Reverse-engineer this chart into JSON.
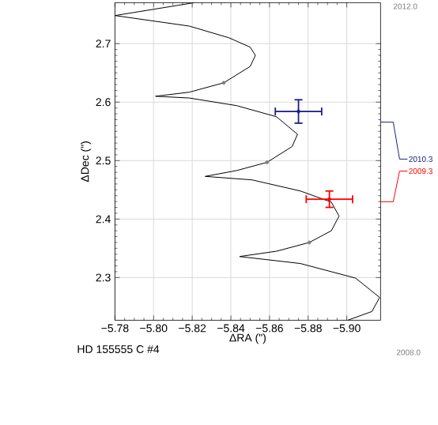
{
  "chart_data": {
    "type": "line",
    "xlabel": "ΔRA (\")",
    "ylabel": "ΔDec (\")",
    "xlim": [
      -5.78,
      -5.9175
    ],
    "ylim": [
      2.227,
      2.77
    ],
    "xticks": [
      {
        "value": -5.78,
        "label": "−5.78"
      },
      {
        "value": -5.8,
        "label": "−5.80"
      },
      {
        "value": -5.82,
        "label": "−5.82"
      },
      {
        "value": -5.84,
        "label": "−5.84"
      },
      {
        "value": -5.86,
        "label": "−5.86"
      },
      {
        "value": -5.88,
        "label": "−5.88"
      },
      {
        "value": -5.9,
        "label": "−5.90"
      }
    ],
    "yticks": [
      2.3,
      2.4,
      2.5,
      2.6,
      2.7
    ],
    "grid": true,
    "annotations": [
      "2012.0",
      "2008.0",
      "HD 155555 C #4"
    ],
    "series": [
      {
        "color": "#000000",
        "marker": "none",
        "x": [
          -5.821,
          -5.78,
          -5.8185,
          -5.839,
          -5.85,
          -5.8527,
          -5.85,
          -5.8363,
          -5.8185,
          -5.801,
          -5.8185,
          -5.843,
          -5.8636,
          -5.8745,
          -5.8717,
          -5.8587,
          -5.843,
          -5.8267,
          -5.851,
          -5.876,
          -5.892,
          -5.896,
          -5.892,
          -5.8806,
          -5.8636,
          -5.8445,
          -5.876,
          -5.9046,
          -5.917,
          -5.913,
          -5.9005
        ],
        "values": [
          2.77,
          2.748,
          2.73,
          2.71,
          2.694,
          2.68,
          2.661,
          2.633,
          2.617,
          2.61,
          2.607,
          2.594,
          2.575,
          2.545,
          2.524,
          2.497,
          2.483,
          2.473,
          2.467,
          2.448,
          2.429,
          2.405,
          2.38,
          2.36,
          2.345,
          2.336,
          2.324,
          2.299,
          2.266,
          2.242,
          2.227
        ]
      },
      {
        "type": "scatter",
        "color": "#808080",
        "marker": "circle",
        "x": [
          -5.8363,
          -5.8587,
          -5.8806
        ],
        "values": [
          2.633,
          2.497,
          2.36
        ]
      },
      {
        "type": "scatter",
        "name": "2010.3",
        "color": "#1c1c8c",
        "marker": "none",
        "x": [
          -5.875
        ],
        "values": [
          2.584
        ],
        "errors": [
          0.02
        ],
        "xerrors": [
          0.012
        ]
      },
      {
        "type": "scatter",
        "name": "2009.3",
        "color": "#ff0000",
        "marker": "none",
        "x": [
          -5.891
        ],
        "values": [
          2.434
        ],
        "errors": [
          0.014
        ],
        "xerrors": [
          0.012
        ]
      }
    ]
  }
}
